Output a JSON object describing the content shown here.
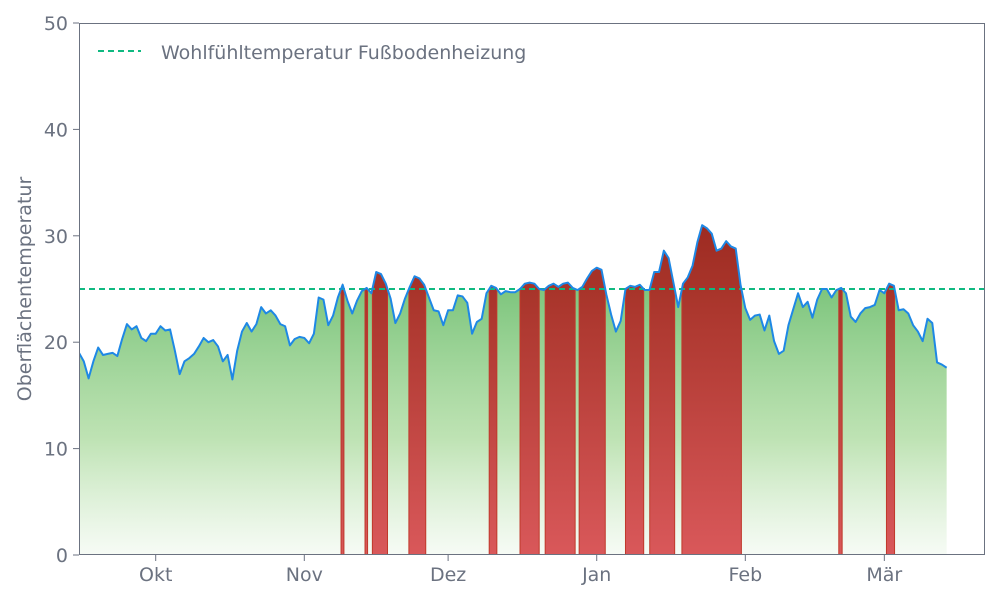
{
  "chart_data": {
    "type": "area",
    "title": "",
    "xlabel": "",
    "ylabel": "Oberflächentemperatur",
    "ylim": [
      0,
      50
    ],
    "yticks": [
      0,
      10,
      20,
      30,
      40,
      50
    ],
    "x_start": "2023-09-15",
    "x_end": "2024-03-22",
    "x_tick_dates": [
      "2023-10-01",
      "2023-11-01",
      "2023-12-01",
      "2024-01-01",
      "2024-02-01",
      "2024-03-01"
    ],
    "x_tick_labels": [
      "Okt",
      "Nov",
      "Dez",
      "Jan",
      "Feb",
      "Mär"
    ],
    "grid": false,
    "legend": {
      "position": "top-left",
      "entries": [
        "Wohlfühltemperatur Fußbodenheizung"
      ]
    },
    "threshold": {
      "name": "Wohlfühltemperatur Fußbodenheizung",
      "value": 25,
      "color": "#10b981",
      "style": "dashed"
    },
    "colors": {
      "line": "#1e88e5",
      "below_fill": "#4caf50",
      "above_fill": "#c62828",
      "axis": "#6b7280"
    },
    "series": [
      {
        "name": "",
        "points": [
          [
            "2023-09-15",
            19.0
          ],
          [
            "2023-09-16",
            18.2
          ],
          [
            "2023-09-17",
            16.6
          ],
          [
            "2023-09-18",
            18.2
          ],
          [
            "2023-09-19",
            19.5
          ],
          [
            "2023-09-20",
            18.8
          ],
          [
            "2023-09-21",
            18.9
          ],
          [
            "2023-09-22",
            19.0
          ],
          [
            "2023-09-23",
            18.7
          ],
          [
            "2023-09-24",
            20.3
          ],
          [
            "2023-09-25",
            21.7
          ],
          [
            "2023-09-26",
            21.2
          ],
          [
            "2023-09-27",
            21.5
          ],
          [
            "2023-09-28",
            20.4
          ],
          [
            "2023-09-29",
            20.1
          ],
          [
            "2023-09-30",
            20.8
          ],
          [
            "2023-10-01",
            20.8
          ],
          [
            "2023-10-02",
            21.5
          ],
          [
            "2023-10-03",
            21.1
          ],
          [
            "2023-10-04",
            21.2
          ],
          [
            "2023-10-05",
            19.2
          ],
          [
            "2023-10-06",
            17.0
          ],
          [
            "2023-10-07",
            18.2
          ],
          [
            "2023-10-08",
            18.5
          ],
          [
            "2023-10-09",
            18.9
          ],
          [
            "2023-10-10",
            19.6
          ],
          [
            "2023-10-11",
            20.4
          ],
          [
            "2023-10-12",
            20.0
          ],
          [
            "2023-10-13",
            20.2
          ],
          [
            "2023-10-14",
            19.6
          ],
          [
            "2023-10-15",
            18.2
          ],
          [
            "2023-10-16",
            18.8
          ],
          [
            "2023-10-17",
            16.5
          ],
          [
            "2023-10-18",
            19.2
          ],
          [
            "2023-10-19",
            21.0
          ],
          [
            "2023-10-20",
            21.8
          ],
          [
            "2023-10-21",
            21.0
          ],
          [
            "2023-10-22",
            21.7
          ],
          [
            "2023-10-23",
            23.3
          ],
          [
            "2023-10-24",
            22.7
          ],
          [
            "2023-10-25",
            23.0
          ],
          [
            "2023-10-26",
            22.5
          ],
          [
            "2023-10-27",
            21.7
          ],
          [
            "2023-10-28",
            21.5
          ],
          [
            "2023-10-29",
            19.7
          ],
          [
            "2023-10-30",
            20.3
          ],
          [
            "2023-10-31",
            20.5
          ],
          [
            "2023-11-01",
            20.4
          ],
          [
            "2023-11-02",
            19.9
          ],
          [
            "2023-11-03",
            20.8
          ],
          [
            "2023-11-04",
            24.2
          ],
          [
            "2023-11-05",
            24.0
          ],
          [
            "2023-11-06",
            21.6
          ],
          [
            "2023-11-07",
            22.5
          ],
          [
            "2023-11-08",
            24.2
          ],
          [
            "2023-11-09",
            25.4
          ],
          [
            "2023-11-10",
            23.9
          ],
          [
            "2023-11-11",
            22.7
          ],
          [
            "2023-11-12",
            23.9
          ],
          [
            "2023-11-13",
            24.8
          ],
          [
            "2023-11-14",
            25.1
          ],
          [
            "2023-11-15",
            24.6
          ],
          [
            "2023-11-16",
            26.6
          ],
          [
            "2023-11-17",
            26.4
          ],
          [
            "2023-11-18",
            25.5
          ],
          [
            "2023-11-19",
            24.1
          ],
          [
            "2023-11-20",
            21.8
          ],
          [
            "2023-11-21",
            22.7
          ],
          [
            "2023-11-22",
            24.1
          ],
          [
            "2023-11-23",
            25.2
          ],
          [
            "2023-11-24",
            26.2
          ],
          [
            "2023-11-25",
            26.0
          ],
          [
            "2023-11-26",
            25.4
          ],
          [
            "2023-11-27",
            24.2
          ],
          [
            "2023-11-28",
            23.0
          ],
          [
            "2023-11-29",
            22.9
          ],
          [
            "2023-11-30",
            21.6
          ],
          [
            "2023-12-01",
            23.0
          ],
          [
            "2023-12-02",
            23.0
          ],
          [
            "2023-12-03",
            24.4
          ],
          [
            "2023-12-04",
            24.3
          ],
          [
            "2023-12-05",
            23.7
          ],
          [
            "2023-12-06",
            20.8
          ],
          [
            "2023-12-07",
            21.9
          ],
          [
            "2023-12-08",
            22.2
          ],
          [
            "2023-12-09",
            24.6
          ],
          [
            "2023-12-10",
            25.3
          ],
          [
            "2023-12-11",
            25.1
          ],
          [
            "2023-12-12",
            24.5
          ],
          [
            "2023-12-13",
            24.8
          ],
          [
            "2023-12-14",
            24.7
          ],
          [
            "2023-12-15",
            24.7
          ],
          [
            "2023-12-16",
            25.0
          ],
          [
            "2023-12-17",
            25.5
          ],
          [
            "2023-12-18",
            25.6
          ],
          [
            "2023-12-19",
            25.5
          ],
          [
            "2023-12-20",
            25.0
          ],
          [
            "2023-12-21",
            24.9
          ],
          [
            "2023-12-22",
            25.3
          ],
          [
            "2023-12-23",
            25.5
          ],
          [
            "2023-12-24",
            25.2
          ],
          [
            "2023-12-25",
            25.5
          ],
          [
            "2023-12-26",
            25.6
          ],
          [
            "2023-12-27",
            25.1
          ],
          [
            "2023-12-28",
            24.9
          ],
          [
            "2023-12-29",
            25.2
          ],
          [
            "2023-12-30",
            26.0
          ],
          [
            "2023-12-31",
            26.7
          ],
          [
            "2024-01-01",
            27.0
          ],
          [
            "2024-01-02",
            26.8
          ],
          [
            "2024-01-03",
            24.5
          ],
          [
            "2024-01-04",
            22.6
          ],
          [
            "2024-01-05",
            21.0
          ],
          [
            "2024-01-06",
            22.0
          ],
          [
            "2024-01-07",
            25.0
          ],
          [
            "2024-01-08",
            25.3
          ],
          [
            "2024-01-09",
            25.2
          ],
          [
            "2024-01-10",
            25.4
          ],
          [
            "2024-01-11",
            24.9
          ],
          [
            "2024-01-12",
            24.9
          ],
          [
            "2024-01-13",
            26.6
          ],
          [
            "2024-01-14",
            26.6
          ],
          [
            "2024-01-15",
            28.6
          ],
          [
            "2024-01-16",
            27.9
          ],
          [
            "2024-01-17",
            25.6
          ],
          [
            "2024-01-18",
            23.3
          ],
          [
            "2024-01-19",
            25.5
          ],
          [
            "2024-01-20",
            26.1
          ],
          [
            "2024-01-21",
            27.2
          ],
          [
            "2024-01-22",
            29.4
          ],
          [
            "2024-01-23",
            31.0
          ],
          [
            "2024-01-24",
            30.7
          ],
          [
            "2024-01-25",
            30.2
          ],
          [
            "2024-01-26",
            28.6
          ],
          [
            "2024-01-27",
            28.8
          ],
          [
            "2024-01-28",
            29.5
          ],
          [
            "2024-01-29",
            29.0
          ],
          [
            "2024-01-30",
            28.8
          ],
          [
            "2024-01-31",
            25.4
          ],
          [
            "2024-02-01",
            23.2
          ],
          [
            "2024-02-02",
            22.1
          ],
          [
            "2024-02-03",
            22.5
          ],
          [
            "2024-02-04",
            22.6
          ],
          [
            "2024-02-05",
            21.1
          ],
          [
            "2024-02-06",
            22.5
          ],
          [
            "2024-02-07",
            20.1
          ],
          [
            "2024-02-08",
            18.9
          ],
          [
            "2024-02-09",
            19.2
          ],
          [
            "2024-02-10",
            21.6
          ],
          [
            "2024-02-11",
            23.1
          ],
          [
            "2024-02-12",
            24.6
          ],
          [
            "2024-02-13",
            23.3
          ],
          [
            "2024-02-14",
            23.8
          ],
          [
            "2024-02-15",
            22.3
          ],
          [
            "2024-02-16",
            24.0
          ],
          [
            "2024-02-17",
            25.0
          ],
          [
            "2024-02-18",
            25.0
          ],
          [
            "2024-02-19",
            24.2
          ],
          [
            "2024-02-20",
            24.9
          ],
          [
            "2024-02-21",
            25.1
          ],
          [
            "2024-02-22",
            24.6
          ],
          [
            "2024-02-23",
            22.4
          ],
          [
            "2024-02-24",
            21.9
          ],
          [
            "2024-02-25",
            22.7
          ],
          [
            "2024-02-26",
            23.2
          ],
          [
            "2024-02-27",
            23.3
          ],
          [
            "2024-02-28",
            23.5
          ],
          [
            "2024-02-29",
            24.9
          ],
          [
            "2024-03-01",
            24.6
          ],
          [
            "2024-03-02",
            25.5
          ],
          [
            "2024-03-03",
            25.3
          ],
          [
            "2024-03-04",
            23.0
          ],
          [
            "2024-03-05",
            23.1
          ],
          [
            "2024-03-06",
            22.7
          ],
          [
            "2024-03-07",
            21.6
          ],
          [
            "2024-03-08",
            21.0
          ],
          [
            "2024-03-09",
            20.1
          ],
          [
            "2024-03-10",
            22.2
          ],
          [
            "2024-03-11",
            21.8
          ],
          [
            "2024-03-12",
            18.1
          ],
          [
            "2024-03-13",
            17.9
          ],
          [
            "2024-03-14",
            17.6
          ]
        ]
      }
    ]
  }
}
